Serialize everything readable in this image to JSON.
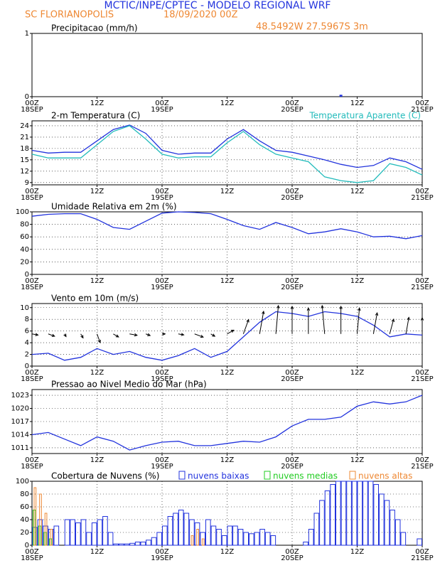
{
  "header": {
    "title": "MCTIC/INPE/CPTEC - MODELO REGIONAL WRF",
    "location": "SC FLORIANOPOLIS",
    "date": "18/09/2020 00Z",
    "coords": "48.5492W 27.5967S 3m"
  },
  "x_axis": {
    "xlim": [
      0,
      72
    ],
    "xticks": [
      {
        "value": 0,
        "label": "00Z"
      },
      {
        "value": 12,
        "label": "12Z"
      },
      {
        "value": 24,
        "label": "00Z"
      },
      {
        "value": 36,
        "label": "12Z"
      },
      {
        "value": 48,
        "label": "00Z"
      },
      {
        "value": 60,
        "label": "12Z"
      },
      {
        "value": 72,
        "label": "00Z"
      }
    ],
    "dates": [
      {
        "value": 0,
        "label": "18SEP"
      },
      {
        "value": 24,
        "label": "19SEP"
      },
      {
        "value": 48,
        "label": "20SEP"
      },
      {
        "value": 72,
        "label": "21SEP"
      }
    ]
  },
  "chart_data": [
    {
      "type": "bar",
      "title": "Precipitacao (mm/h)",
      "x": [
        0,
        3,
        6,
        9,
        12,
        15,
        18,
        21,
        24,
        27,
        30,
        33,
        36,
        39,
        42,
        45,
        48,
        51,
        54,
        57,
        60,
        63,
        66,
        69,
        72
      ],
      "values": [
        0,
        0,
        0,
        0,
        0,
        0,
        0,
        0,
        0,
        0,
        0,
        0,
        0,
        0,
        0,
        0,
        0,
        0,
        0,
        0.03,
        0,
        0,
        0,
        0,
        0
      ],
      "color": "#2233dd",
      "ylim": [
        0,
        1
      ],
      "yticks": [
        0,
        1
      ],
      "grid": false
    },
    {
      "type": "line",
      "title": "2-m Temperatura (C)",
      "x": [
        0,
        3,
        6,
        9,
        12,
        15,
        18,
        21,
        24,
        27,
        30,
        33,
        36,
        39,
        42,
        45,
        48,
        51,
        54,
        57,
        60,
        63,
        66,
        69,
        72
      ],
      "series": [
        {
          "color": "#2233dd",
          "values": [
            17.5,
            16.8,
            17,
            17,
            20,
            23,
            24.2,
            22,
            17.5,
            16.5,
            16.8,
            16.8,
            20.5,
            23,
            20,
            17.5,
            17,
            16,
            15,
            13.8,
            13,
            13.5,
            15.5,
            14.5,
            12.5
          ]
        },
        {
          "name": "Temperatura Aparente (C)",
          "color": "#22bbbb",
          "values": [
            16.5,
            15.5,
            15.5,
            15.5,
            19,
            22.5,
            24,
            20.5,
            16.5,
            15.5,
            15.8,
            15.8,
            19.5,
            22.5,
            19,
            16.5,
            15.5,
            14.5,
            10.5,
            9.5,
            9,
            9.5,
            14,
            13,
            11
          ]
        }
      ],
      "ylim": [
        8.4,
        25.3
      ],
      "yticks": [
        9,
        12,
        15,
        18,
        21,
        24
      ],
      "grid": true
    },
    {
      "type": "line",
      "title": "Umidade Relativa em 2m (%)",
      "x": [
        0,
        3,
        6,
        9,
        12,
        15,
        18,
        21,
        24,
        27,
        30,
        33,
        36,
        39,
        42,
        45,
        48,
        51,
        54,
        57,
        60,
        63,
        66,
        69,
        72
      ],
      "series": [
        {
          "color": "#2233dd",
          "values": [
            93,
            96,
            97,
            97,
            88,
            75,
            72,
            85,
            98,
            100,
            99,
            97,
            88,
            78,
            72,
            83,
            75,
            65,
            68,
            73,
            68,
            60,
            61,
            57,
            62
          ]
        }
      ],
      "ylim": [
        0,
        100
      ],
      "yticks": [
        0,
        20,
        40,
        60,
        80,
        100
      ],
      "grid": true
    },
    {
      "type": "line",
      "title": "Vento em 10m (m/s)",
      "x": [
        0,
        3,
        6,
        9,
        12,
        15,
        18,
        21,
        24,
        27,
        30,
        33,
        36,
        39,
        42,
        45,
        48,
        51,
        54,
        57,
        60,
        63,
        66,
        69,
        72
      ],
      "series": [
        {
          "color": "#2233dd",
          "values": [
            2,
            2.2,
            1,
            1.5,
            3,
            2,
            2.5,
            1.5,
            1,
            1.8,
            3,
            1.5,
            2.5,
            5,
            7.5,
            9.3,
            9,
            8.5,
            9.3,
            9,
            8.5,
            7,
            5,
            5.5,
            5.3
          ]
        }
      ],
      "arrow_directions": [
        100,
        110,
        150,
        150,
        160,
        120,
        100,
        110,
        90,
        100,
        110,
        120,
        60,
        20,
        10,
        5,
        0,
        0,
        355,
        0,
        5,
        10,
        15,
        10,
        0
      ],
      "arrow_color": "#000000",
      "ylim": [
        0,
        10.7
      ],
      "yticks": [
        0,
        2,
        4,
        6,
        8,
        10
      ],
      "grid": true
    },
    {
      "type": "line",
      "title": "Pressao ao Nivel Medio do Mar (hPa)",
      "x": [
        0,
        3,
        6,
        9,
        12,
        15,
        18,
        21,
        24,
        27,
        30,
        33,
        36,
        39,
        42,
        45,
        48,
        51,
        54,
        57,
        60,
        63,
        66,
        69,
        72
      ],
      "series": [
        {
          "color": "#2233dd",
          "values": [
            1014,
            1014.5,
            1013,
            1011.5,
            1013.5,
            1012.5,
            1010.5,
            1011.5,
            1012.3,
            1012.5,
            1011.5,
            1011.5,
            1012,
            1012.5,
            1012.3,
            1013.5,
            1016,
            1017.5,
            1017.5,
            1018,
            1020.5,
            1021.5,
            1021,
            1021.5,
            1023
          ]
        }
      ],
      "ylim": [
        1009.7,
        1024.3
      ],
      "yticks": [
        1011,
        1014,
        1017,
        1020,
        1023
      ],
      "grid": true
    },
    {
      "type": "bar",
      "title": "Cobertura de Nuvens (%)",
      "x": [
        0,
        1,
        2,
        3,
        4,
        5,
        6,
        7,
        8,
        9,
        10,
        11,
        12,
        13,
        14,
        15,
        16,
        17,
        18,
        19,
        20,
        21,
        22,
        23,
        24,
        25,
        26,
        27,
        28,
        29,
        30,
        31,
        32,
        33,
        34,
        35,
        36,
        37,
        38,
        39,
        40,
        41,
        42,
        43,
        44,
        45,
        46,
        47,
        48,
        49,
        50,
        51,
        52,
        53,
        54,
        55,
        56,
        57,
        58,
        59,
        60,
        61,
        62,
        63,
        64,
        65,
        66,
        67,
        68,
        69,
        70,
        71
      ],
      "series": [
        {
          "name": "nuvens baixas",
          "color": "#2233dd",
          "values": [
            28,
            40,
            30,
            25,
            30,
            0,
            40,
            40,
            35,
            40,
            20,
            35,
            40,
            45,
            20,
            2,
            2,
            2,
            3,
            5,
            5,
            8,
            12,
            20,
            30,
            45,
            50,
            55,
            50,
            40,
            35,
            20,
            40,
            30,
            25,
            15,
            30,
            30,
            25,
            20,
            18,
            20,
            25,
            20,
            15,
            0,
            0,
            0,
            0,
            0,
            5,
            25,
            50,
            70,
            85,
            95,
            100,
            100,
            100,
            100,
            100,
            100,
            100,
            95,
            80,
            70,
            55,
            40,
            20,
            0,
            0,
            10
          ]
        },
        {
          "name": "nuvens medias",
          "color": "#22cc22",
          "values": [
            55,
            30,
            20,
            10,
            0,
            0,
            0,
            0,
            0,
            0,
            0,
            0,
            0,
            0,
            0,
            0,
            0,
            0,
            0,
            0,
            0,
            0,
            0,
            0,
            0,
            0,
            0,
            0,
            0,
            0,
            0,
            0,
            0,
            0,
            0,
            0,
            0,
            0,
            0,
            0,
            0,
            0,
            0,
            0,
            0,
            0,
            0,
            0,
            0,
            0,
            0,
            0,
            0,
            0,
            0,
            0,
            0,
            0,
            0,
            0,
            0,
            0,
            0,
            0,
            0,
            0,
            0,
            0,
            0,
            0,
            0,
            0
          ]
        },
        {
          "name": "nuvens altas",
          "color": "#ee8833",
          "values": [
            90,
            80,
            50,
            25,
            0,
            0,
            0,
            0,
            0,
            0,
            0,
            0,
            0,
            0,
            0,
            0,
            0,
            0,
            0,
            0,
            0,
            0,
            0,
            0,
            0,
            0,
            0,
            0,
            0,
            15,
            25,
            10,
            0,
            0,
            0,
            0,
            0,
            0,
            0,
            0,
            0,
            0,
            0,
            0,
            0,
            0,
            0,
            0,
            0,
            0,
            0,
            0,
            0,
            0,
            0,
            0,
            0,
            0,
            0,
            0,
            0,
            0,
            0,
            0,
            0,
            0,
            0,
            0,
            0,
            0,
            0,
            0
          ]
        }
      ],
      "ylim": [
        0,
        100
      ],
      "yticks": [
        0,
        20,
        40,
        60,
        80,
        100
      ],
      "grid": true
    }
  ]
}
